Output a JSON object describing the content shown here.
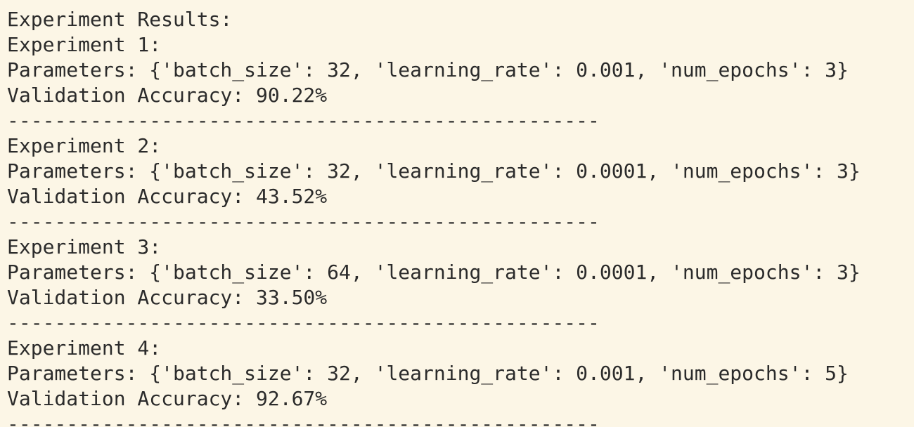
{
  "header": "Experiment Results:",
  "experiments": [
    {
      "title": "Experiment 1:",
      "parameters": "Parameters: {'batch_size': 32, 'learning_rate': 0.001, 'num_epochs': 3}",
      "accuracy": "Validation Accuracy: 90.22%",
      "separator": "--------------------------------------------------"
    },
    {
      "title": "Experiment 2:",
      "parameters": "Parameters: {'batch_size': 32, 'learning_rate': 0.0001, 'num_epochs': 3}",
      "accuracy": "Validation Accuracy: 43.52%",
      "separator": "--------------------------------------------------"
    },
    {
      "title": "Experiment 3:",
      "parameters": "Parameters: {'batch_size': 64, 'learning_rate': 0.0001, 'num_epochs': 3}",
      "accuracy": "Validation Accuracy: 33.50%",
      "separator": "--------------------------------------------------"
    },
    {
      "title": "Experiment 4:",
      "parameters": "Parameters: {'batch_size': 32, 'learning_rate': 0.001, 'num_epochs': 5}",
      "accuracy": "Validation Accuracy: 92.67%",
      "separator": "--------------------------------------------------"
    }
  ]
}
